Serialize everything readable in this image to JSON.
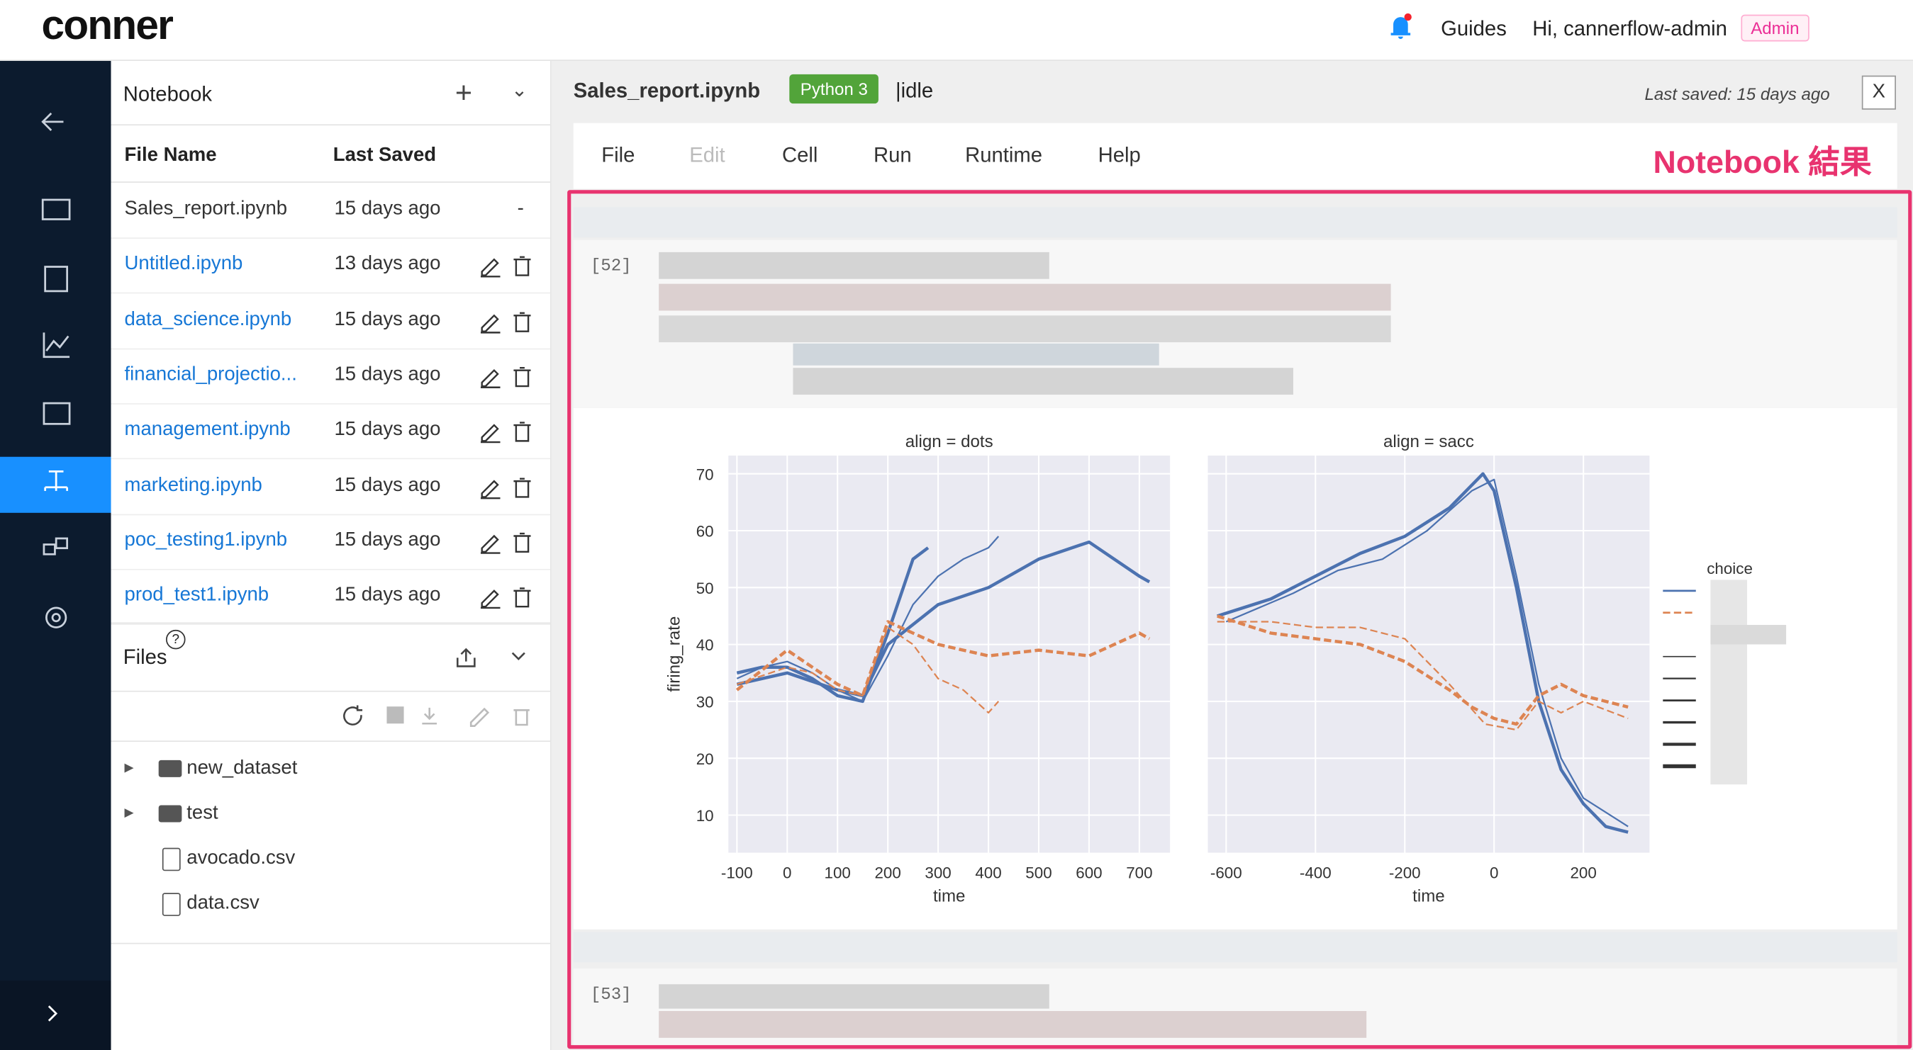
{
  "header": {
    "logo": "conner",
    "guides": "Guides",
    "greeting": "Hi, cannerflow-admin",
    "role": "Admin"
  },
  "notebook_panel": {
    "title": "Notebook",
    "columns": [
      "File Name",
      "Last Saved"
    ],
    "rows": [
      {
        "name": "Sales_report.ipynb",
        "saved": "15 days ago",
        "action": "-"
      },
      {
        "name": "Untitled.ipynb",
        "saved": "13 days ago"
      },
      {
        "name": "data_science.ipynb",
        "saved": "15 days ago"
      },
      {
        "name": "financial_projectio...",
        "saved": "15 days ago"
      },
      {
        "name": "management.ipynb",
        "saved": "15 days ago"
      },
      {
        "name": "marketing.ipynb",
        "saved": "15 days ago"
      },
      {
        "name": "poc_testing1.ipynb",
        "saved": "15 days ago"
      },
      {
        "name": "prod_test1.ipynb",
        "saved": "15 days ago"
      }
    ]
  },
  "files_panel": {
    "title": "Files",
    "help": "?",
    "folders": [
      "new_dataset",
      "test"
    ],
    "files": [
      "avocado.csv",
      "data.csv"
    ]
  },
  "editor": {
    "file": "Sales_report.ipynb",
    "kernel": "Python 3",
    "status": "|idle",
    "last_saved": "Last saved: 15 days ago",
    "close": "X",
    "menu": [
      "File",
      "Edit",
      "Cell",
      "Run",
      "Runtime",
      "Help"
    ],
    "annotation": "Notebook 結果",
    "cells": [
      "[52]",
      "[53]"
    ]
  },
  "chart_data": [
    {
      "type": "line",
      "title": "align = dots",
      "xlabel": "time",
      "ylabel": "firing_rate",
      "xlim": [
        -117,
        761
      ],
      "ylim": [
        3.4,
        73.2
      ],
      "xticks": [
        -100,
        0,
        100,
        200,
        300,
        400,
        500,
        600,
        700
      ],
      "yticks": [
        10,
        20,
        30,
        40,
        50,
        60,
        70
      ],
      "grid": true,
      "series": [
        {
          "color": "#4c72b0",
          "x": [
            -100,
            -50,
            0,
            50,
            100,
            150,
            200,
            250,
            280
          ],
          "values": [
            35,
            36,
            36,
            34,
            31,
            30,
            42,
            55,
            57
          ]
        },
        {
          "color": "#4c72b0",
          "x": [
            -100,
            -50,
            0,
            50,
            100,
            150,
            200,
            250,
            300,
            350,
            400,
            420
          ],
          "values": [
            34,
            36,
            37,
            35,
            32,
            30,
            38,
            47,
            52,
            55,
            57,
            59
          ]
        },
        {
          "color": "#4c72b0",
          "x": [
            -100,
            0,
            100,
            150,
            200,
            300,
            400,
            500,
            600,
            700,
            720
          ],
          "values": [
            33,
            35,
            32,
            31,
            40,
            47,
            50,
            55,
            58,
            52,
            51
          ]
        },
        {
          "color": "#dd8452",
          "dash": true,
          "x": [
            -100,
            0,
            50,
            100,
            150,
            200,
            250,
            300,
            350,
            400,
            420
          ],
          "values": [
            33,
            36,
            35,
            32,
            31,
            43,
            40,
            34,
            32,
            28,
            30
          ]
        },
        {
          "color": "#dd8452",
          "dash": true,
          "x": [
            -100,
            0,
            100,
            150,
            200,
            300,
            400,
            500,
            600,
            700,
            720
          ],
          "values": [
            32,
            39,
            33,
            31,
            44,
            40,
            38,
            39,
            38,
            42,
            41
          ]
        }
      ]
    },
    {
      "type": "line",
      "title": "align = sacc",
      "xlabel": "time",
      "xlim": [
        -641,
        348
      ],
      "ylim": [
        3.4,
        73.2
      ],
      "xticks": [
        -600,
        -400,
        -200,
        0,
        200
      ],
      "grid": true,
      "legend_title": "choice",
      "series": [
        {
          "color": "#4c72b0",
          "x": [
            -620,
            -500,
            -400,
            -300,
            -200,
            -100,
            -25,
            0,
            50,
            100,
            150,
            200,
            250,
            300
          ],
          "values": [
            45,
            48,
            52,
            56,
            59,
            64,
            70,
            67,
            50,
            30,
            18,
            12,
            8,
            7
          ]
        },
        {
          "color": "#4c72b0",
          "x": [
            -600,
            -450,
            -350,
            -250,
            -150,
            -50,
            0,
            50,
            100,
            150,
            200,
            300
          ],
          "values": [
            44,
            49,
            53,
            55,
            60,
            67,
            69,
            52,
            33,
            20,
            13,
            8
          ]
        },
        {
          "color": "#dd8452",
          "dash": true,
          "x": [
            -620,
            -500,
            -400,
            -300,
            -200,
            -100,
            -50,
            0,
            50,
            100,
            150,
            200,
            300
          ],
          "values": [
            45,
            42,
            41,
            40,
            37,
            32,
            29,
            27,
            26,
            31,
            33,
            31,
            29
          ]
        },
        {
          "color": "#dd8452",
          "dash": true,
          "x": [
            -620,
            -500,
            -400,
            -300,
            -200,
            -100,
            -20,
            50,
            100,
            150,
            200,
            300
          ],
          "values": [
            44,
            44,
            43,
            43,
            41,
            33,
            26,
            25,
            30,
            28,
            30,
            27
          ]
        }
      ]
    }
  ]
}
